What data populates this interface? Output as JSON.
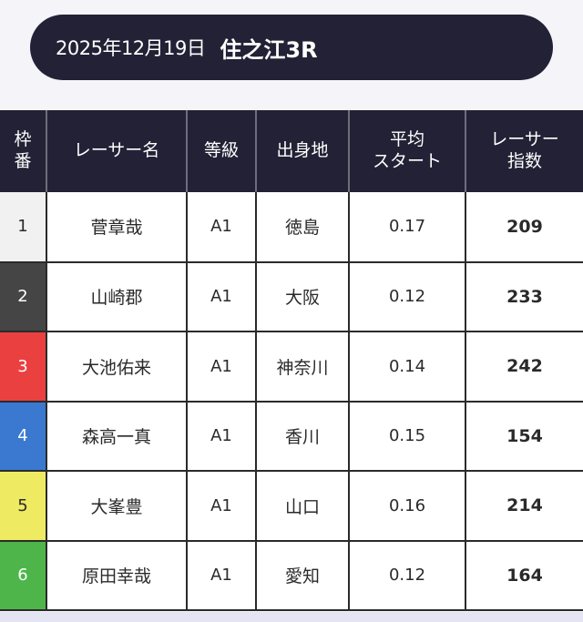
{
  "header": {
    "date": "2025年12月19日",
    "race": "住之江3R"
  },
  "table": {
    "columns": {
      "frame": [
        "枠",
        "番"
      ],
      "racer": "レーサー名",
      "grade": "等級",
      "origin": "出身地",
      "avg_start": [
        "平均",
        "スタート"
      ],
      "index": [
        "レーサー",
        "指数"
      ]
    },
    "rows": [
      {
        "frame": "1",
        "frame_color": "#f1f1f1",
        "frame_text_color": "#2a2a2a",
        "racer": "菅章哉",
        "grade": "A1",
        "origin": "徳島",
        "avg_start": "0.17",
        "index": "209"
      },
      {
        "frame": "2",
        "frame_color": "#454545",
        "frame_text_color": "#ffffff",
        "racer": "山崎郡",
        "grade": "A1",
        "origin": "大阪",
        "avg_start": "0.12",
        "index": "233"
      },
      {
        "frame": "3",
        "frame_color": "#ea4040",
        "frame_text_color": "#ffffff",
        "racer": "大池佑来",
        "grade": "A1",
        "origin": "神奈川",
        "avg_start": "0.14",
        "index": "242"
      },
      {
        "frame": "4",
        "frame_color": "#3b79d0",
        "frame_text_color": "#ffffff",
        "racer": "森高一真",
        "grade": "A1",
        "origin": "香川",
        "avg_start": "0.15",
        "index": "154"
      },
      {
        "frame": "5",
        "frame_color": "#eeea62",
        "frame_text_color": "#2a2a2a",
        "racer": "大峯豊",
        "grade": "A1",
        "origin": "山口",
        "avg_start": "0.16",
        "index": "214"
      },
      {
        "frame": "6",
        "frame_color": "#4eb54a",
        "frame_text_color": "#ffffff",
        "racer": "原田幸哉",
        "grade": "A1",
        "origin": "愛知",
        "avg_start": "0.12",
        "index": "164"
      }
    ]
  }
}
